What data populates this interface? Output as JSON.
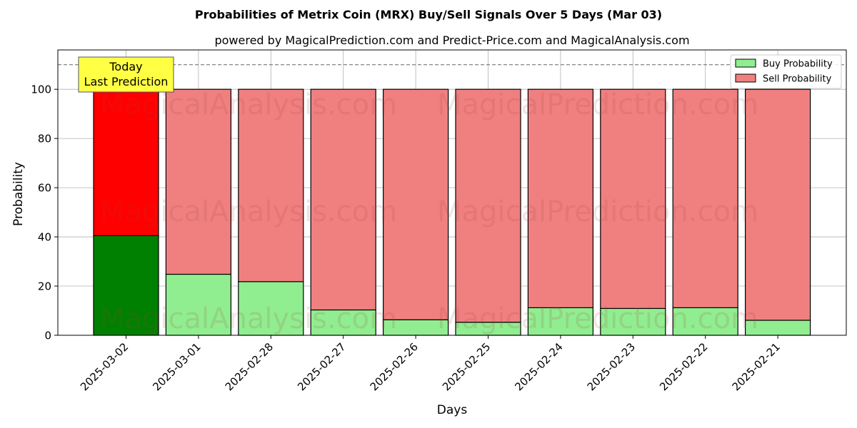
{
  "chart_data": {
    "type": "bar",
    "stacked": true,
    "title": "Probabilities of Metrix Coin (MRX) Buy/Sell Signals Over 5 Days (Mar 03)",
    "subtitle": "powered by MagicalPrediction.com and Predict-Price.com and MagicalAnalysis.com",
    "xlabel": "Days",
    "ylabel": "Probability",
    "ylim": [
      0,
      116
    ],
    "yticks": [
      0,
      20,
      40,
      60,
      80,
      100
    ],
    "grid": true,
    "legend_position": "top-right",
    "categories": [
      "2025-03-02",
      "2025-03-01",
      "2025-02-28",
      "2025-02-27",
      "2025-02-26",
      "2025-02-25",
      "2025-02-24",
      "2025-02-23",
      "2025-02-22",
      "2025-02-21"
    ],
    "series": [
      {
        "name": "Buy Probability",
        "color": "#90ee90",
        "highlight_color": "#008000",
        "values": [
          40.5,
          24.8,
          21.8,
          10.3,
          6.3,
          5.3,
          11.2,
          10.9,
          11.2,
          6.1
        ]
      },
      {
        "name": "Sell Probability",
        "color": "#f08080",
        "highlight_color": "#ff0000",
        "values": [
          59.5,
          75.2,
          78.2,
          89.7,
          93.7,
          94.7,
          88.8,
          89.1,
          88.8,
          93.9
        ]
      }
    ],
    "highlight_index": 0,
    "reference_line": 110,
    "annotation": {
      "lines": [
        "Today",
        "Last Prediction"
      ],
      "color": "#ffff44"
    },
    "watermarks": [
      "MagicalAnalysis.com",
      "MagicalPrediction.com"
    ]
  }
}
